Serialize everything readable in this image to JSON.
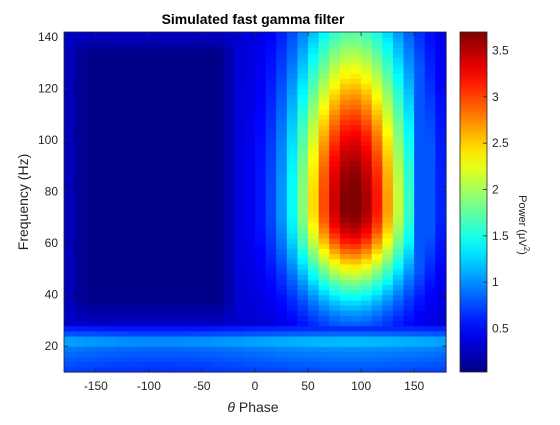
{
  "chart_data": {
    "type": "heatmap",
    "title": "Simulated fast gamma filter",
    "xlabel_symbol": "θ",
    "xlabel": "Phase",
    "ylabel": "Frequency (Hz)",
    "colorbar_label": "Power (μV²)",
    "colorbar_label_base": "Power (μV",
    "colorbar_label_sup": "2",
    "colorbar_label_close": ")",
    "colormap": "jet",
    "xlim": [
      -180,
      180
    ],
    "ylim": [
      10,
      142
    ],
    "clim": [
      0.03,
      3.7
    ],
    "x_ticks": [
      -150,
      -100,
      -50,
      0,
      50,
      100,
      150
    ],
    "y_ticks": [
      20,
      40,
      60,
      80,
      100,
      120,
      140
    ],
    "colorbar_ticks": [
      0.5,
      1,
      1.5,
      2,
      2.5,
      3,
      3.5
    ],
    "grid": false,
    "x_bin_width": 10,
    "y_bin_width": 2,
    "model": {
      "low_band": {
        "freq_max": 28,
        "values_at_freq": [
          [
            10,
            0.7
          ],
          [
            16,
            0.85
          ],
          [
            20,
            0.95
          ],
          [
            22,
            1.2
          ],
          [
            26,
            0.65
          ],
          [
            28,
            0.55
          ]
        ]
      },
      "background": 0.3,
      "peak": {
        "phase_center": 92,
        "freq_center": 75,
        "amplitude": 3.45,
        "phase_sigma": 38,
        "freq_sigma_below": 24,
        "freq_sigma_above": 50
      },
      "trough": {
        "phase_min": -180,
        "phase_max": -15,
        "value": 0.06
      }
    }
  }
}
